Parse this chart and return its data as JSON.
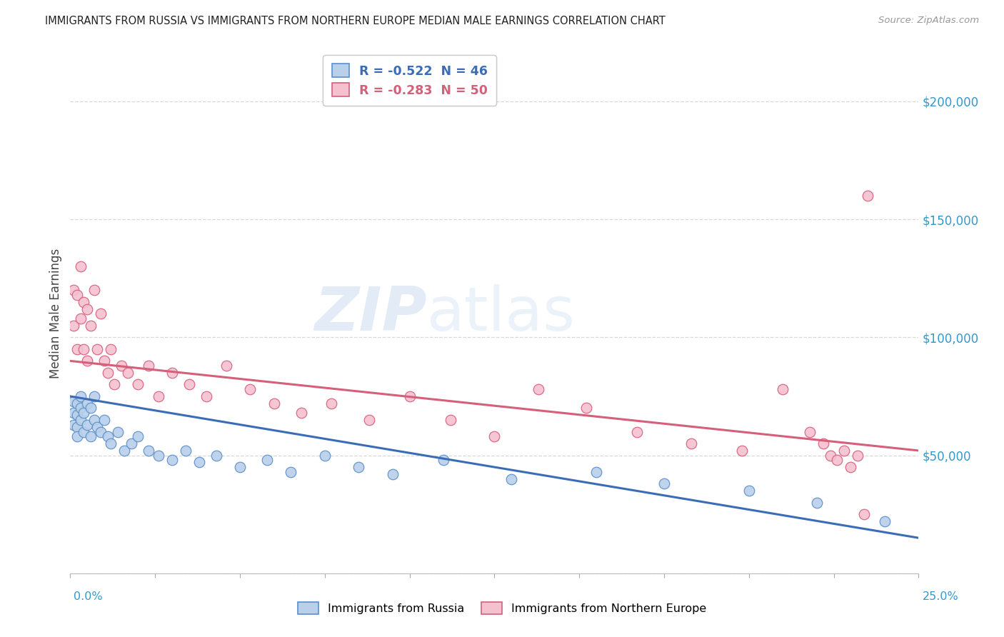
{
  "title": "IMMIGRANTS FROM RUSSIA VS IMMIGRANTS FROM NORTHERN EUROPE MEDIAN MALE EARNINGS CORRELATION CHART",
  "source": "Source: ZipAtlas.com",
  "ylabel": "Median Male Earnings",
  "xlim": [
    0.0,
    0.25
  ],
  "ylim": [
    0,
    220000
  ],
  "background_color": "#ffffff",
  "grid_color": "#d8d8d8",
  "series1_label": "Immigrants from Russia",
  "series1_color": "#b8d0ea",
  "series1_edge_color": "#5b8fc9",
  "series1_line_color": "#3a6db5",
  "series1_R": "-0.522",
  "series1_N": "46",
  "series2_label": "Immigrants from Northern Europe",
  "series2_color": "#f5c0d0",
  "series2_edge_color": "#d4607a",
  "series2_line_color": "#d4607a",
  "series2_R": "-0.283",
  "series2_N": "50",
  "russia_x": [
    0.001,
    0.001,
    0.001,
    0.002,
    0.002,
    0.002,
    0.002,
    0.003,
    0.003,
    0.003,
    0.004,
    0.004,
    0.005,
    0.005,
    0.006,
    0.006,
    0.007,
    0.007,
    0.008,
    0.009,
    0.01,
    0.011,
    0.012,
    0.014,
    0.016,
    0.018,
    0.02,
    0.023,
    0.026,
    0.03,
    0.034,
    0.038,
    0.043,
    0.05,
    0.058,
    0.065,
    0.075,
    0.085,
    0.095,
    0.11,
    0.13,
    0.155,
    0.175,
    0.2,
    0.22,
    0.24
  ],
  "russia_y": [
    73000,
    68000,
    63000,
    72000,
    67000,
    62000,
    58000,
    75000,
    70000,
    65000,
    68000,
    60000,
    72000,
    63000,
    70000,
    58000,
    75000,
    65000,
    62000,
    60000,
    65000,
    58000,
    55000,
    60000,
    52000,
    55000,
    58000,
    52000,
    50000,
    48000,
    52000,
    47000,
    50000,
    45000,
    48000,
    43000,
    50000,
    45000,
    42000,
    48000,
    40000,
    43000,
    38000,
    35000,
    30000,
    22000
  ],
  "northern_x": [
    0.001,
    0.001,
    0.002,
    0.002,
    0.003,
    0.003,
    0.004,
    0.004,
    0.005,
    0.005,
    0.006,
    0.007,
    0.008,
    0.009,
    0.01,
    0.011,
    0.012,
    0.013,
    0.015,
    0.017,
    0.02,
    0.023,
    0.026,
    0.03,
    0.035,
    0.04,
    0.046,
    0.053,
    0.06,
    0.068,
    0.077,
    0.088,
    0.1,
    0.112,
    0.125,
    0.138,
    0.152,
    0.167,
    0.183,
    0.198,
    0.21,
    0.218,
    0.222,
    0.224,
    0.226,
    0.228,
    0.23,
    0.232,
    0.234,
    0.235
  ],
  "northern_y": [
    120000,
    105000,
    118000,
    95000,
    130000,
    108000,
    115000,
    95000,
    112000,
    90000,
    105000,
    120000,
    95000,
    110000,
    90000,
    85000,
    95000,
    80000,
    88000,
    85000,
    80000,
    88000,
    75000,
    85000,
    80000,
    75000,
    88000,
    78000,
    72000,
    68000,
    72000,
    65000,
    75000,
    65000,
    58000,
    78000,
    70000,
    60000,
    55000,
    52000,
    78000,
    60000,
    55000,
    50000,
    48000,
    52000,
    45000,
    50000,
    25000,
    160000
  ]
}
